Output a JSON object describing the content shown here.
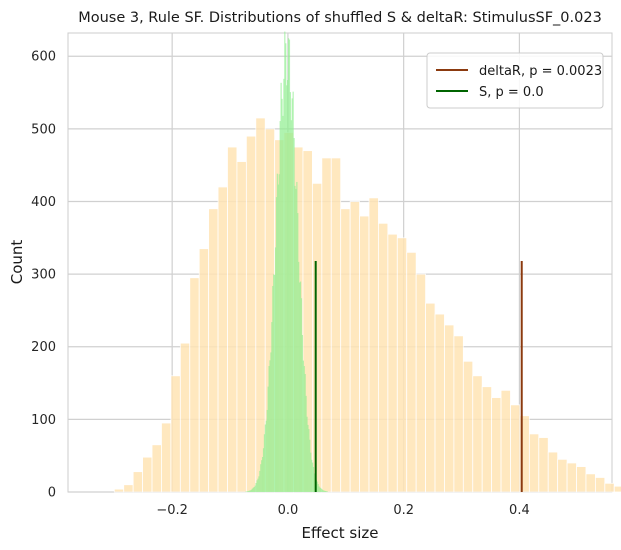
{
  "chart_data": {
    "type": "histogram",
    "title": "Mouse 3, Rule SF. Distributions of shuffled S & deltaR: StimulusSF_0.023",
    "xlabel": "Effect size",
    "ylabel": "Count",
    "xlim": [
      -0.38,
      0.56
    ],
    "ylim": [
      0,
      632
    ],
    "xticks": [
      -0.2,
      0.0,
      0.2,
      0.4
    ],
    "xtick_labels": [
      "−0.2",
      "0.0",
      "0.2",
      "0.4"
    ],
    "yticks": [
      0,
      100,
      200,
      300,
      400,
      500,
      600
    ],
    "grid": true,
    "legend_position": "top-right",
    "series": [
      {
        "name": "shuffled deltaR",
        "kind": "histogram",
        "color": "#ffe4b5",
        "bin_start": -0.3,
        "bin_width": 0.0163,
        "counts": [
          4,
          10,
          28,
          48,
          65,
          95,
          160,
          205,
          295,
          335,
          390,
          420,
          475,
          455,
          490,
          515,
          500,
          485,
          495,
          475,
          470,
          425,
          460,
          460,
          390,
          400,
          380,
          405,
          370,
          355,
          350,
          330,
          300,
          260,
          245,
          230,
          215,
          180,
          160,
          145,
          130,
          140,
          120,
          105,
          80,
          75,
          55,
          45,
          40,
          35,
          25,
          20,
          12,
          8,
          6,
          4,
          2,
          1
        ]
      },
      {
        "name": "shuffled S",
        "kind": "histogram",
        "color": "#90ee90",
        "mean": -0.002,
        "std": 0.019,
        "peak": 600
      },
      {
        "name": "deltaR, p = 0.0023",
        "kind": "vline",
        "x": 0.404,
        "y_top": 318,
        "color": "#8b3a0f"
      },
      {
        "name": "S, p = 0.0",
        "kind": "vline",
        "x": 0.048,
        "y_top": 318,
        "color": "#006400"
      }
    ],
    "legend": [
      "deltaR, p = 0.0023",
      "S, p = 0.0"
    ]
  }
}
